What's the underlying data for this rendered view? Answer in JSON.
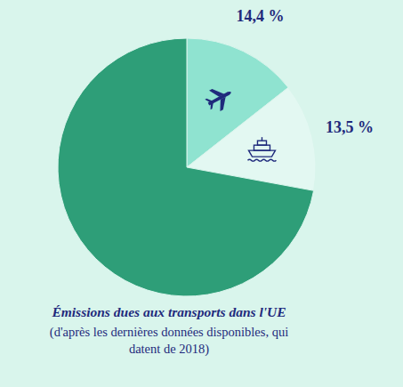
{
  "chart_data": {
    "type": "pie",
    "title": "Émissions dues aux transports dans l'UE",
    "subtitle": "(d'après les dernières données disponibles, qui datent de 2018)",
    "values": [
      14.4,
      13.5,
      72.1
    ],
    "value_labels": [
      "14,4 %",
      "13,5 %",
      null
    ],
    "colors": [
      "#8fe3d0",
      "#e3f8f2",
      "#2e9e78"
    ],
    "data_labels": true
  }
}
